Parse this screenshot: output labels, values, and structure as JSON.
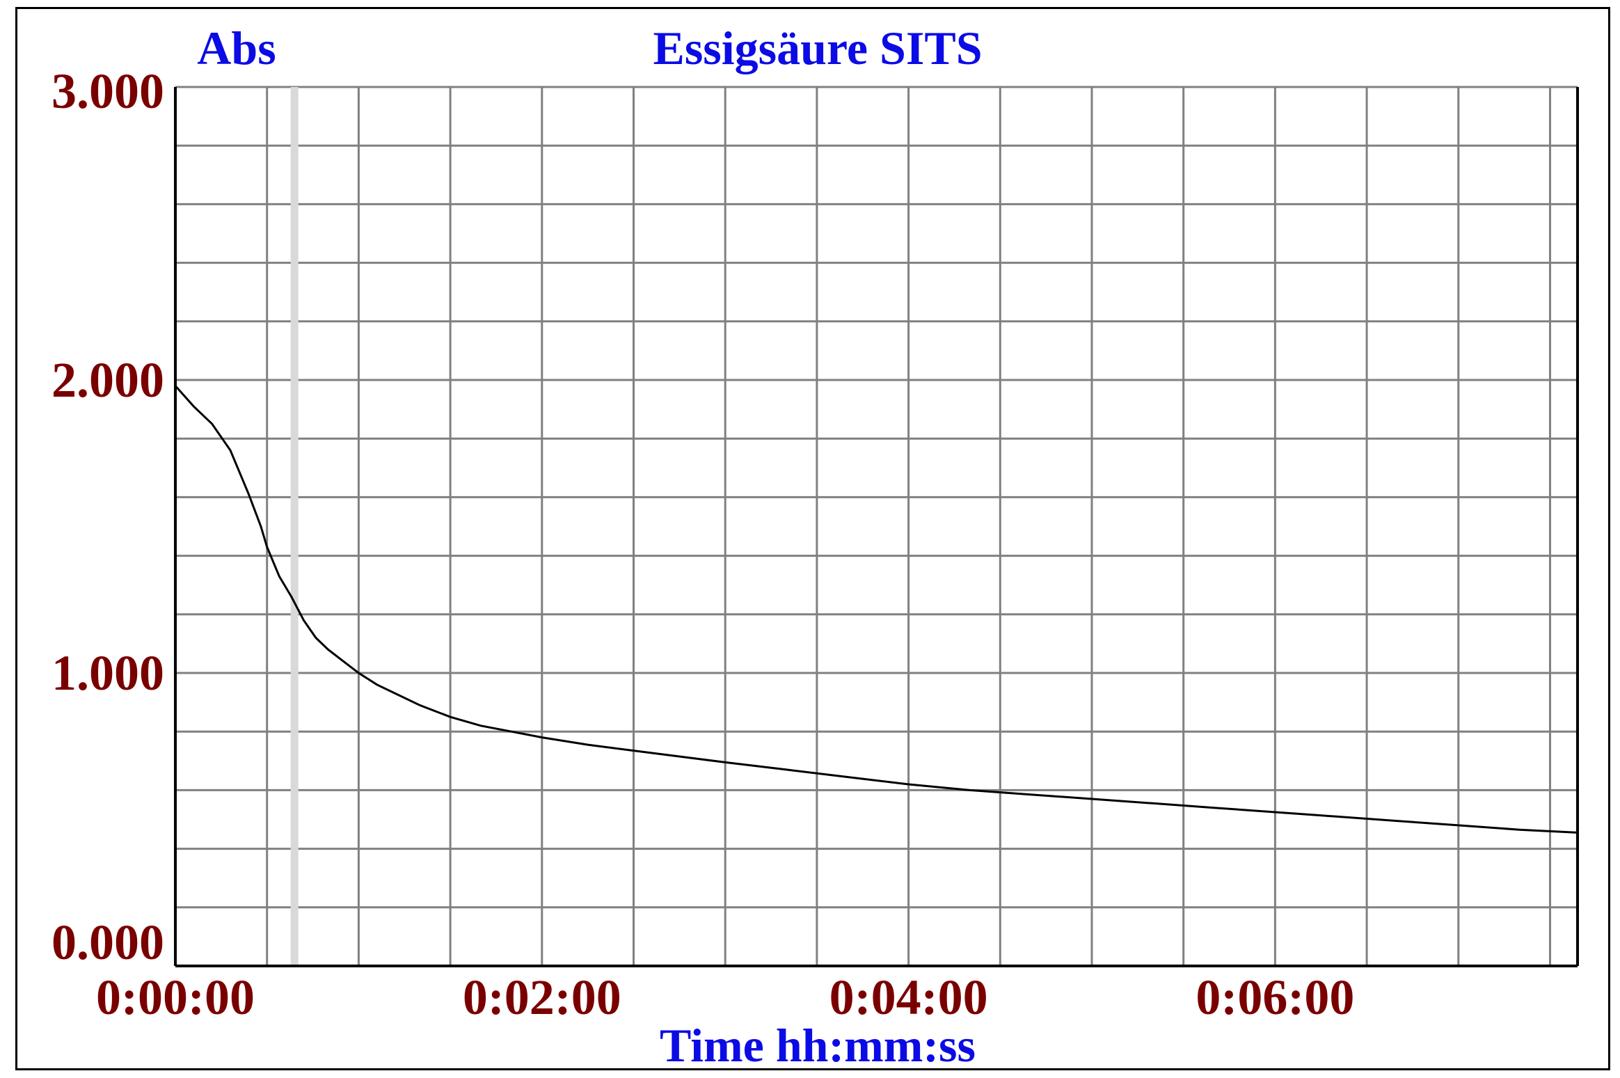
{
  "chart_data": {
    "type": "line",
    "title": "Essigsäure SITS",
    "ylabel": "Abs",
    "xlabel": "Time hh:mm:ss",
    "ylim": [
      0,
      3
    ],
    "xlim": [
      0,
      459
    ],
    "x_major_step": 120,
    "x_minor_step": 30,
    "y_grid_step": 0.2,
    "grid": true,
    "y_ticks": [
      {
        "value": 0,
        "label": "0.000"
      },
      {
        "value": 1,
        "label": "1.000"
      },
      {
        "value": 2,
        "label": "2.000"
      },
      {
        "value": 3,
        "label": "3.000"
      }
    ],
    "x_ticks": [
      {
        "value": 0,
        "label": "0:00:00"
      },
      {
        "value": 120,
        "label": "0:02:00"
      },
      {
        "value": 240,
        "label": "0:04:00"
      },
      {
        "value": 360,
        "label": "0:06:00"
      }
    ],
    "marker_x": 39,
    "colors": {
      "axis_label": "#0b0be6",
      "tick_label": "#7a0000",
      "grid": "#808080",
      "marker": "#d9d9d9",
      "line": "#000000"
    },
    "series": [
      {
        "x": [
          0,
          6,
          12,
          18,
          24,
          28,
          30,
          34,
          38,
          42,
          46,
          50,
          55,
          60,
          66,
          72,
          80,
          90,
          100,
          110,
          120,
          135,
          150,
          165,
          180,
          200,
          220,
          240,
          260,
          280,
          300,
          320,
          340,
          360,
          380,
          400,
          420,
          440,
          459
        ],
        "y": [
          1.98,
          1.91,
          1.85,
          1.76,
          1.61,
          1.5,
          1.43,
          1.33,
          1.26,
          1.18,
          1.12,
          1.08,
          1.04,
          1.0,
          0.96,
          0.93,
          0.89,
          0.85,
          0.82,
          0.8,
          0.78,
          0.755,
          0.735,
          0.715,
          0.695,
          0.67,
          0.645,
          0.62,
          0.6,
          0.585,
          0.57,
          0.555,
          0.54,
          0.525,
          0.51,
          0.495,
          0.48,
          0.465,
          0.455
        ]
      }
    ]
  }
}
